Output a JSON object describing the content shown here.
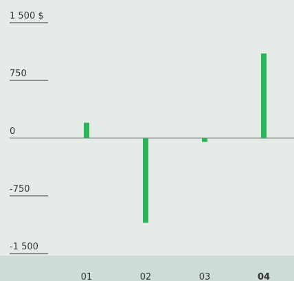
{
  "chart_data": {
    "type": "bar",
    "categories": [
      "01",
      "02",
      "03",
      "04"
    ],
    "values": [
      200,
      -1100,
      -50,
      1100
    ],
    "color": "#2db35a",
    "highlight_index": 3,
    "ylim": [
      -1500,
      1500
    ],
    "yticks": [
      {
        "value": -1500,
        "label": "-1 500"
      },
      -750,
      0,
      750,
      {
        "value": 1500,
        "label": "1 500 $"
      }
    ]
  }
}
